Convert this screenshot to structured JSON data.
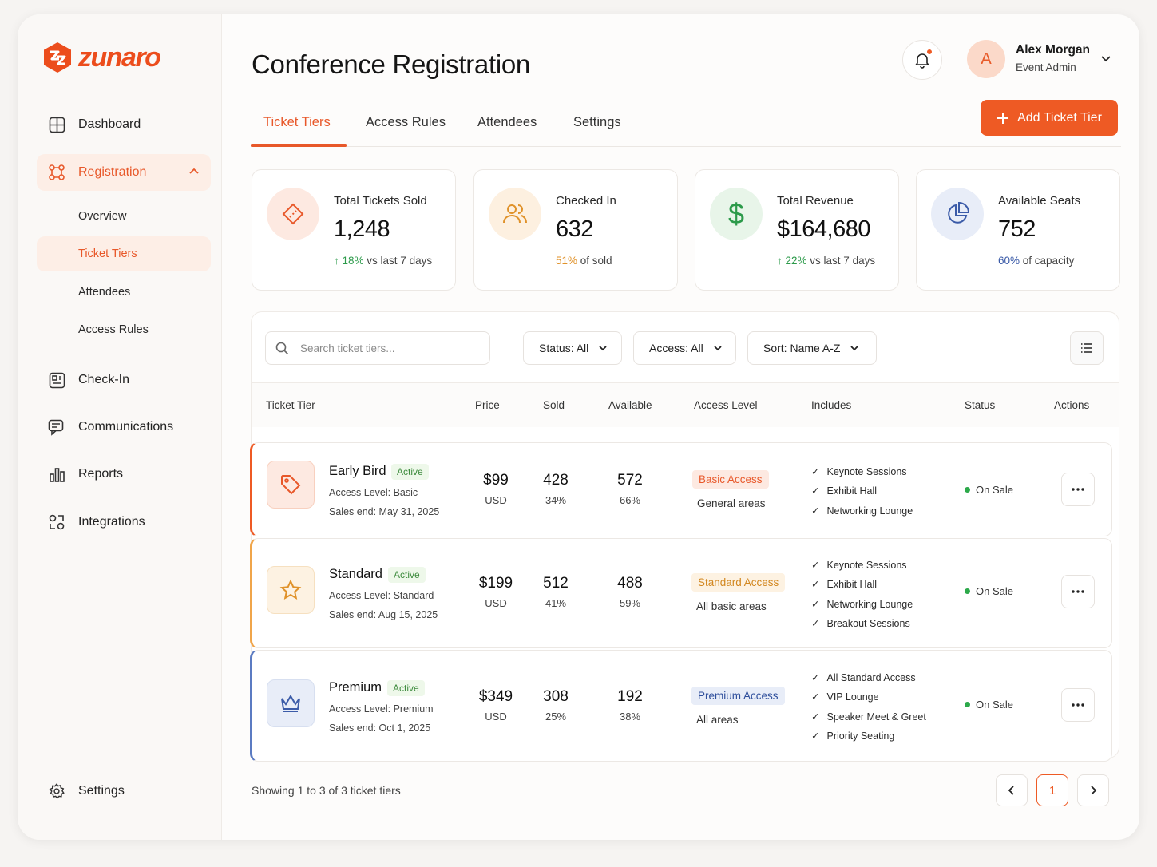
{
  "app": {
    "brand": "zunaro",
    "accent": "#ee5a24"
  },
  "sidebar": {
    "items": [
      {
        "label": "Dashboard",
        "icon": "dashboard-icon"
      },
      {
        "label": "Registration",
        "icon": "registration-icon"
      },
      {
        "label": "Check-In",
        "icon": "check-in-icon"
      },
      {
        "label": "Communications",
        "icon": "chat-icon"
      },
      {
        "label": "Reports",
        "icon": "bar-chart-icon"
      },
      {
        "label": "Integrations",
        "icon": "integrations-icon"
      }
    ],
    "sub_items": [
      "Overview",
      "Ticket Tiers",
      "Attendees",
      "Access Rules"
    ],
    "settings_label": "Settings"
  },
  "header": {
    "title": "Conference Registration",
    "user": {
      "initial": "A",
      "name": "Alex Morgan",
      "role": "Event Admin"
    }
  },
  "tabs": [
    "Ticket Tiers",
    "Access Rules",
    "Attendees",
    "Settings"
  ],
  "add_button": "Add Ticket Tier",
  "stats": [
    {
      "label": "Total Tickets Sold",
      "value": "1,248",
      "delta": "18%",
      "delta_text": " vs last 7 days"
    },
    {
      "label": "Checked In",
      "value": "632",
      "delta": "51%",
      "delta_text": " of sold"
    },
    {
      "label": "Total Revenue",
      "value": "$164,680",
      "delta": "22%",
      "delta_text": " vs last 7 days"
    },
    {
      "label": "Available Seats",
      "value": "752",
      "delta": "60%",
      "delta_text": " of capacity"
    }
  ],
  "toolbar": {
    "search_placeholder": "Search ticket tiers...",
    "status_filter": "Status: All",
    "access_filter": "Access: All",
    "sort": "Sort: Name A-Z"
  },
  "table": {
    "columns": [
      "Ticket Tier",
      "Price",
      "Sold",
      "Available",
      "Access Level",
      "Includes",
      "Status",
      "Actions"
    ],
    "rows": [
      {
        "name": "Early Bird",
        "badge": "Active",
        "access_line": "Access Level: Basic",
        "sales_end": "Sales end: May 31, 2025",
        "price": "$99",
        "currency": "USD",
        "sold": "428",
        "sold_pct": "34%",
        "available": "572",
        "available_pct": "66%",
        "access": "Basic Access",
        "access_desc": "General areas",
        "includes": [
          "Keynote Sessions",
          "Exhibit Hall",
          "Networking Lounge"
        ],
        "status": "On Sale"
      },
      {
        "name": "Standard",
        "badge": "Active",
        "access_line": "Access Level: Standard",
        "sales_end": "Sales end: Aug 15, 2025",
        "price": "$199",
        "currency": "USD",
        "sold": "512",
        "sold_pct": "41%",
        "available": "488",
        "available_pct": "59%",
        "access": "Standard Access",
        "access_desc": "All basic areas",
        "includes": [
          "Keynote Sessions",
          "Exhibit Hall",
          "Networking Lounge",
          "Breakout Sessions"
        ],
        "status": "On Sale"
      },
      {
        "name": "Premium",
        "badge": "Active",
        "access_line": "Access Level: Premium",
        "sales_end": "Sales end: Oct 1, 2025",
        "price": "$349",
        "currency": "USD",
        "sold": "308",
        "sold_pct": "25%",
        "available": "192",
        "available_pct": "38%",
        "access": "Premium Access",
        "access_desc": "All areas",
        "includes": [
          "All Standard Access",
          "VIP Lounge",
          "Speaker Meet & Greet",
          "Priority Seating"
        ],
        "status": "On Sale"
      }
    ]
  },
  "footer": {
    "showing": "Showing 1 to 3 of 3 ticket tiers",
    "page": "1"
  }
}
